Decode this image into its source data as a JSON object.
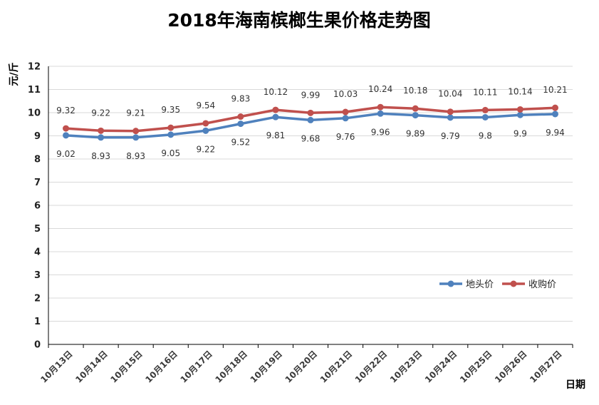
{
  "chart_data": {
    "type": "line",
    "title": "2018年海南槟榔生果价格走势图",
    "xlabel": "日期",
    "ylabel": "元/斤",
    "ylim": [
      0,
      12
    ],
    "y_ticks": [
      0,
      1,
      2,
      3,
      4,
      5,
      6,
      7,
      8,
      9,
      10,
      11,
      12
    ],
    "grid": true,
    "legend_position": "right",
    "categories": [
      "10月13日",
      "10月14日",
      "10月15日",
      "10月16日",
      "10月17日",
      "10月18日",
      "10月19日",
      "10月20日",
      "10月21日",
      "10月22日",
      "10月23日",
      "10月24日",
      "10月25日",
      "10月26日",
      "10月27日"
    ],
    "series": [
      {
        "name": "地头价",
        "color": "#4f81bd",
        "label_position": "below",
        "values": [
          9.02,
          8.93,
          8.93,
          9.05,
          9.22,
          9.52,
          9.81,
          9.68,
          9.76,
          9.96,
          9.89,
          9.79,
          9.8,
          9.9,
          9.94
        ],
        "labels": [
          "9.02",
          "8.93",
          "8.93",
          "9.05",
          "9.22",
          "9.52",
          "9.81",
          "9.68",
          "9.76",
          "9.96",
          "9.89",
          "9.79",
          "9.8",
          "9.9",
          "9.94"
        ]
      },
      {
        "name": "收购价",
        "color": "#c0504d",
        "label_position": "above",
        "values": [
          9.32,
          9.22,
          9.21,
          9.35,
          9.54,
          9.83,
          10.12,
          9.99,
          10.03,
          10.24,
          10.18,
          10.04,
          10.11,
          10.14,
          10.21
        ],
        "labels": [
          "9.32",
          "9.22",
          "9.21",
          "9.35",
          "9.54",
          "9.83",
          "10.12",
          "9.99",
          "10.03",
          "10.24",
          "10.18",
          "10.04",
          "10.11",
          "10.14",
          "10.21"
        ]
      }
    ]
  }
}
